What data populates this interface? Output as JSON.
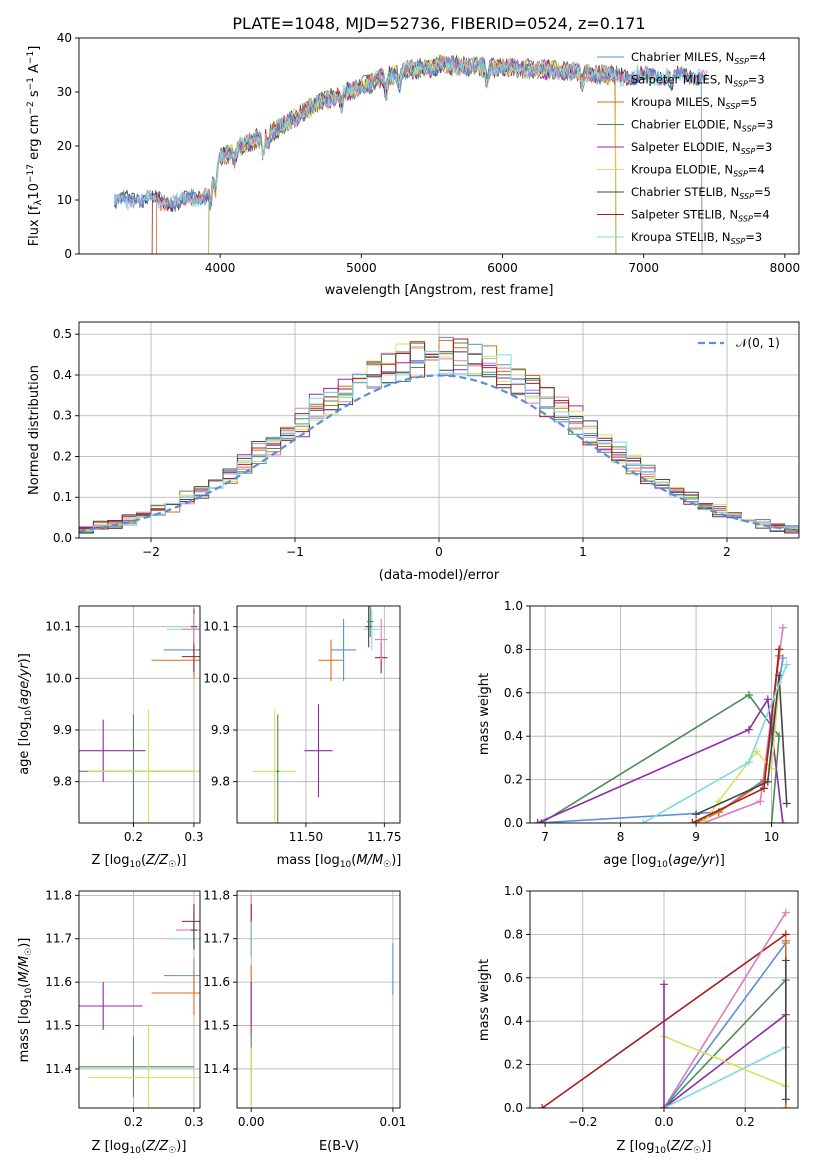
{
  "figure": {
    "title": "PLATE=1048, MJD=52736, FIBERID=0524, z=0.171"
  },
  "series_styles": [
    {
      "name": "Chabrier MILES, N$_{SSP}$=4",
      "color": "#5b8fd6"
    },
    {
      "name": "Salpeter MILES, N$_{SSP}$=3",
      "color": "#e07bb5"
    },
    {
      "name": "Kroupa MILES, N$_{SSP}$=5",
      "color": "#e06a1b"
    },
    {
      "name": "Chabrier ELODIE, N$_{SSP}$=3",
      "color": "#4e8a55"
    },
    {
      "name": "Salpeter ELODIE, N$_{SSP}$=3",
      "color": "#8f2aa8"
    },
    {
      "name": "Kroupa ELODIE, N$_{SSP}$=4",
      "color": "#d8e25a"
    },
    {
      "name": "Chabrier STELIB, N$_{SSP}$=5",
      "color": "#454545"
    },
    {
      "name": "Salpeter STELIB, N$_{SSP}$=4",
      "color": "#a31f1f"
    },
    {
      "name": "Kroupa STELIB, N$_{SSP}$=3",
      "color": "#7fd9e0"
    }
  ],
  "legend_labels": [
    {
      "pre": "Chabrier MILES, N",
      "sub": "SSP",
      "post": "=4"
    },
    {
      "pre": "Salpeter MILES, N",
      "sub": "SSP",
      "post": "=3"
    },
    {
      "pre": "Kroupa MILES, N",
      "sub": "SSP",
      "post": "=5"
    },
    {
      "pre": "Chabrier ELODIE, N",
      "sub": "SSP",
      "post": "=3"
    },
    {
      "pre": "Salpeter ELODIE, N",
      "sub": "SSP",
      "post": "=3"
    },
    {
      "pre": "Kroupa ELODIE, N",
      "sub": "SSP",
      "post": "=4"
    },
    {
      "pre": "Chabrier STELIB, N",
      "sub": "SSP",
      "post": "=5"
    },
    {
      "pre": "Salpeter STELIB, N",
      "sub": "SSP",
      "post": "=4"
    },
    {
      "pre": "Kroupa STELIB, N",
      "sub": "SSP",
      "post": "=3"
    }
  ],
  "labels": {
    "spec_x": "wavelength [Angstrom, rest frame]",
    "spec_y": "Flux [f",
    "hist_x": "(data-model)/error",
    "hist_y": "Normed distribution",
    "hist_legend": "𝒩(0, 1)",
    "age_y": "age  [log",
    "z_x": "Z [log",
    "mass_x": "mass [log",
    "mass_y": "mass [log",
    "ebv_x": "E(B-V)",
    "mw_y": "mass weight",
    "age_x": "age  [log"
  },
  "chart_data": [
    {
      "type": "line",
      "title": "PLATE=1048, MJD=52736, FIBERID=0524, z=0.171",
      "xlabel": "wavelength [Angstrom, rest frame]",
      "ylabel": "Flux [fλ10^-17 erg cm^-2 s^-1 A^-1]",
      "xlim": [
        3000,
        8100
      ],
      "ylim": [
        0,
        40
      ],
      "xticks": [
        4000,
        5000,
        6000,
        7000,
        8000
      ],
      "yticks": [
        0,
        10,
        20,
        30,
        40
      ],
      "grid": false,
      "legend": "top-right",
      "continuum": {
        "x": [
          3250,
          3400,
          3700,
          3900,
          4000,
          4200,
          4400,
          4700,
          5000,
          5300,
          5600,
          6000,
          6400,
          6800,
          7200,
          7450
        ],
        "y": [
          9.5,
          10.5,
          9.5,
          11,
          18,
          20.5,
          23,
          28,
          31,
          34,
          35,
          34.5,
          34,
          33,
          33,
          33
        ]
      },
      "series": [
        {
          "name": "Chabrier MILES",
          "x": [
            3250,
            7450
          ]
        },
        {
          "name": "Salpeter MILES",
          "x": [
            3250,
            7450
          ]
        },
        {
          "name": "Kroupa MILES",
          "x": [
            3550,
            6800
          ]
        },
        {
          "name": "Chabrier ELODIE",
          "x": [
            3920,
            6800
          ]
        },
        {
          "name": "Salpeter ELODIE",
          "x": [
            3920,
            6800
          ]
        },
        {
          "name": "Kroupa ELODIE",
          "x": [
            3920,
            6800
          ]
        },
        {
          "name": "Chabrier STELIB",
          "x": [
            3250,
            7410
          ]
        },
        {
          "name": "Salpeter STELIB",
          "x": [
            3520,
            7410
          ]
        },
        {
          "name": "Kroupa STELIB",
          "x": [
            3250,
            7410
          ]
        }
      ]
    },
    {
      "type": "line",
      "xlabel": "(data-model)/error",
      "ylabel": "Normed distribution",
      "xlim": [
        -2.5,
        2.5
      ],
      "ylim": [
        0,
        0.53
      ],
      "xticks": [
        -2,
        -1,
        0,
        1,
        2
      ],
      "yticks": [
        0.0,
        0.1,
        0.2,
        0.3,
        0.4,
        0.5
      ],
      "grid": true,
      "legend": "top-right",
      "reference": {
        "name": "𝒩(0, 1)",
        "mu": 0,
        "sigma": 1,
        "style": "dashed",
        "color": "#5b8fd6"
      },
      "histograms": {
        "bin_width": 0.1,
        "from": -2.5,
        "to": 2.5,
        "shape": "gaussian",
        "mu": 0,
        "sigma": 1
      }
    },
    {
      "type": "scatter",
      "xlabel": "Z [log10(Z/Z☉)]",
      "ylabel": "age  [log10(age/yr)]",
      "xlim": [
        0.11,
        0.31
      ],
      "ylim": [
        9.72,
        10.14
      ],
      "xticks": [
        0.2,
        0.3
      ],
      "yticks": [
        9.8,
        9.9,
        10.0,
        10.1
      ],
      "grid": true,
      "points": [
        {
          "x": 0.3,
          "y": 10.095,
          "xerr": 0.045,
          "yerr": 0.035,
          "s": 8
        },
        {
          "x": 0.3,
          "y": 10.055,
          "xerr": 0.05,
          "yerr": 0.04,
          "s": 0
        },
        {
          "x": 0.3,
          "y": 10.035,
          "xerr": 0.07,
          "yerr": 0.035,
          "s": 2
        },
        {
          "x": 0.3,
          "y": 10.042,
          "xerr": 0.02,
          "yerr": 0.03,
          "s": 7
        },
        {
          "x": 0.3,
          "y": 10.1,
          "xerr": 0.005,
          "yerr": 0.035,
          "s": 6
        },
        {
          "x": 0.3,
          "y": 10.095,
          "xerr": 0.02,
          "yerr": 0.03,
          "s": 1
        },
        {
          "x": 0.15,
          "y": 9.86,
          "xerr": 0.07,
          "yerr": 0.06,
          "s": 4
        },
        {
          "x": 0.2,
          "y": 9.82,
          "xerr": 0.1,
          "yerr": 0.11,
          "s": 3
        },
        {
          "x": 0.225,
          "y": 9.82,
          "xerr": 0.1,
          "yerr": 0.12,
          "s": 5
        }
      ]
    },
    {
      "type": "scatter",
      "xlabel": "mass [log10(M/M☉)]",
      "ylabel": "",
      "xlim": [
        11.28,
        11.8
      ],
      "ylim": [
        9.72,
        10.14
      ],
      "xticks": [
        11.5,
        11.75
      ],
      "yticks": [
        9.8,
        9.9,
        10.0,
        10.1
      ],
      "grid": true,
      "points": [
        {
          "x": 11.62,
          "y": 10.055,
          "xerr": 0.04,
          "yerr": 0.06,
          "s": 0
        },
        {
          "x": 11.58,
          "y": 10.035,
          "xerr": 0.04,
          "yerr": 0.04,
          "s": 2
        },
        {
          "x": 11.74,
          "y": 10.04,
          "xerr": 0.02,
          "yerr": 0.03,
          "s": 7
        },
        {
          "x": 11.71,
          "y": 10.095,
          "xerr": 0.025,
          "yerr": 0.04,
          "s": 8
        },
        {
          "x": 11.7,
          "y": 10.1,
          "xerr": 0.01,
          "yerr": 0.04,
          "s": 6
        },
        {
          "x": 11.74,
          "y": 10.075,
          "xerr": 0.02,
          "yerr": 0.04,
          "s": 1
        },
        {
          "x": 11.705,
          "y": 10.11,
          "xerr": 0.01,
          "yerr": 0.03,
          "s": 3
        },
        {
          "x": 11.54,
          "y": 9.86,
          "xerr": 0.045,
          "yerr": 0.09,
          "s": 4
        },
        {
          "x": 11.4,
          "y": 9.82,
          "xerr": 0.07,
          "yerr": 0.12,
          "s": 5
        },
        {
          "x": 11.41,
          "y": 9.82,
          "xerr": 0.005,
          "yerr": 0.11,
          "s": 3
        }
      ]
    },
    {
      "type": "line",
      "xlabel": "age  [log10(age/yr)]",
      "ylabel": "mass weight",
      "xlim": [
        6.8,
        10.35
      ],
      "ylim": [
        0,
        1
      ],
      "xticks": [
        7,
        8,
        9,
        10
      ],
      "yticks": [
        0.0,
        0.2,
        0.4,
        0.6,
        0.8,
        1.0
      ],
      "grid": true,
      "series": [
        {
          "s": 0,
          "x": [
            6.9,
            9.3,
            9.9,
            10.15
          ],
          "y": [
            0.0,
            0.05,
            0.2,
            0.76
          ]
        },
        {
          "s": 1,
          "x": [
            9.1,
            9.85,
            10.15
          ],
          "y": [
            0.0,
            0.1,
            0.9
          ]
        },
        {
          "s": 2,
          "x": [
            9.0,
            9.3,
            9.9,
            10.1
          ],
          "y": [
            0.0,
            0.05,
            0.19,
            0.77
          ]
        },
        {
          "s": 3,
          "x": [
            6.95,
            9.7,
            10.1,
            10.0
          ],
          "y": [
            0.0,
            0.59,
            0.4,
            0.0
          ]
        },
        {
          "s": 4,
          "x": [
            6.9,
            9.7,
            9.95,
            10.15
          ],
          "y": [
            0.0,
            0.43,
            0.57,
            0.0
          ]
        },
        {
          "s": 5,
          "x": [
            9.1,
            9.3,
            9.8,
            10.0,
            10.1
          ],
          "y": [
            0.0,
            0.1,
            0.33,
            0.25,
            0.65
          ]
        },
        {
          "s": 6,
          "x": [
            9.0,
            9.95,
            10.1,
            10.2
          ],
          "y": [
            0.04,
            0.19,
            0.68,
            0.09
          ]
        },
        {
          "s": 7,
          "x": [
            8.95,
            9.9,
            10.1
          ],
          "y": [
            0.0,
            0.16,
            0.8
          ]
        },
        {
          "s": 8,
          "x": [
            8.3,
            9.7,
            10.2
          ],
          "y": [
            0.0,
            0.28,
            0.73
          ]
        }
      ]
    },
    {
      "type": "scatter",
      "xlabel": "Z [log10(Z/Z☉)]",
      "ylabel": "mass [log10(M/M☉)]",
      "xlim": [
        0.11,
        0.31
      ],
      "ylim": [
        11.31,
        11.81
      ],
      "xticks": [
        0.2,
        0.3
      ],
      "yticks": [
        11.4,
        11.5,
        11.6,
        11.7,
        11.8
      ],
      "grid": true,
      "points": [
        {
          "x": 0.3,
          "y": 11.615,
          "xerr": 0.05,
          "yerr": 0.04,
          "s": 0
        },
        {
          "x": 0.3,
          "y": 11.575,
          "xerr": 0.07,
          "yerr": 0.05,
          "s": 2
        },
        {
          "x": 0.3,
          "y": 11.72,
          "xerr": 0.03,
          "yerr": 0.03,
          "s": 1
        },
        {
          "x": 0.3,
          "y": 11.74,
          "xerr": 0.02,
          "yerr": 0.04,
          "s": 7
        },
        {
          "x": 0.3,
          "y": 11.7,
          "xerr": 0.045,
          "yerr": 0.035,
          "s": 8
        },
        {
          "x": 0.3,
          "y": 11.72,
          "xerr": 0.005,
          "yerr": 0.045,
          "s": 6
        },
        {
          "x": 0.15,
          "y": 11.545,
          "xerr": 0.065,
          "yerr": 0.055,
          "s": 4
        },
        {
          "x": 0.2,
          "y": 11.405,
          "xerr": 0.1,
          "yerr": 0.07,
          "s": 3
        },
        {
          "x": 0.225,
          "y": 11.38,
          "xerr": 0.1,
          "yerr": 0.12,
          "s": 5
        }
      ]
    },
    {
      "type": "scatter",
      "xlabel": "E(B-V)",
      "ylabel": "",
      "xlim": [
        -0.001,
        0.0105
      ],
      "ylim": [
        11.31,
        11.81
      ],
      "xticks": [
        0.0,
        0.01
      ],
      "yticks": [
        11.4,
        11.5,
        11.6,
        11.7,
        11.8
      ],
      "grid": true,
      "points": [
        {
          "x": 0.0,
          "y": 11.74,
          "yerr": 0.06,
          "s": 1
        },
        {
          "x": 0.0,
          "y": 11.72,
          "yerr": 0.06,
          "s": 7
        },
        {
          "x": 0.0,
          "y": 11.57,
          "yerr": 0.07,
          "s": 2
        },
        {
          "x": 0.0,
          "y": 11.54,
          "yerr": 0.06,
          "s": 4
        },
        {
          "x": 0.0,
          "y": 11.4,
          "yerr": 0.08,
          "s": 3
        },
        {
          "x": 0.0,
          "y": 11.38,
          "yerr": 0.07,
          "s": 5
        },
        {
          "x": 0.0,
          "y": 11.7,
          "yerr": 0.04,
          "s": 8
        },
        {
          "x": 0.01,
          "y": 11.63,
          "yerr": 0.06,
          "s": 0
        }
      ]
    },
    {
      "type": "line",
      "xlabel": "Z [log10(Z/Z☉)]",
      "ylabel": "mass weight",
      "xlim": [
        -0.33,
        0.33
      ],
      "ylim": [
        0,
        1
      ],
      "xticks": [
        -0.2,
        0.0,
        0.2
      ],
      "yticks": [
        0.0,
        0.2,
        0.4,
        0.6,
        0.8,
        1.0
      ],
      "grid": true,
      "series": [
        {
          "s": 7,
          "x": [
            -0.3,
            0.3
          ],
          "y": [
            0.0,
            0.8
          ]
        },
        {
          "s": 1,
          "x": [
            0.0,
            0.3
          ],
          "y": [
            0.0,
            0.9
          ]
        },
        {
          "s": 0,
          "x": [
            0.0,
            0.3
          ],
          "y": [
            0.0,
            0.76
          ]
        },
        {
          "s": 3,
          "x": [
            0.0,
            0.3
          ],
          "y": [
            0.0,
            0.59
          ]
        },
        {
          "s": 4,
          "x": [
            0.0,
            0.3
          ],
          "y": [
            0.0,
            0.43
          ]
        },
        {
          "s": 8,
          "x": [
            0.0,
            0.3
          ],
          "y": [
            0.0,
            0.28
          ]
        },
        {
          "s": 5,
          "x": [
            0.0,
            0.3
          ],
          "y": [
            0.33,
            0.1
          ]
        },
        {
          "s": 4,
          "x": [
            0.0,
            0.0
          ],
          "y": [
            0.0,
            0.57
          ]
        },
        {
          "s": 2,
          "x": [
            0.3,
            0.3
          ],
          "y": [
            0.0,
            0.77
          ]
        },
        {
          "s": 6,
          "x": [
            0.3,
            0.3
          ],
          "y": [
            0.04,
            0.68
          ]
        }
      ]
    }
  ]
}
